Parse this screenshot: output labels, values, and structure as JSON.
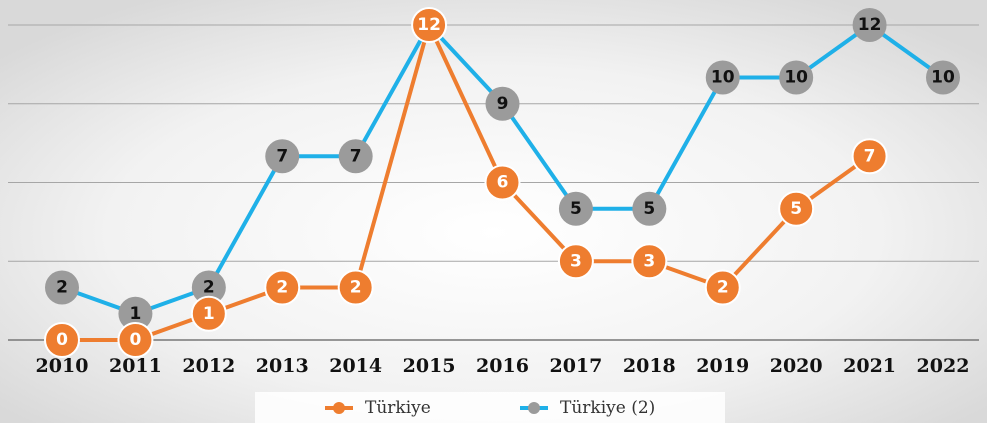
{
  "chart_data": {
    "type": "line",
    "categories": [
      "2010",
      "2011",
      "2012",
      "2013",
      "2014",
      "2015",
      "2016",
      "2017",
      "2018",
      "2019",
      "2020",
      "2021",
      "2022"
    ],
    "series": [
      {
        "name": "Türkiye (2)",
        "color": "#1fb0e8",
        "marker_color": "#9b9b9b",
        "values": [
          2,
          1,
          2,
          7,
          7,
          12,
          9,
          5,
          5,
          10,
          10,
          12,
          10
        ]
      },
      {
        "name": "Türkiye",
        "color": "#ee7d2f",
        "marker_color": "#ee7d2f",
        "values": [
          0,
          0,
          1,
          2,
          2,
          12,
          6,
          3,
          3,
          2,
          5,
          7,
          null
        ]
      }
    ],
    "ylim": [
      0,
      12
    ],
    "yticks": [
      0,
      3,
      6,
      9,
      12
    ],
    "grid": true,
    "legend": "bottom"
  }
}
